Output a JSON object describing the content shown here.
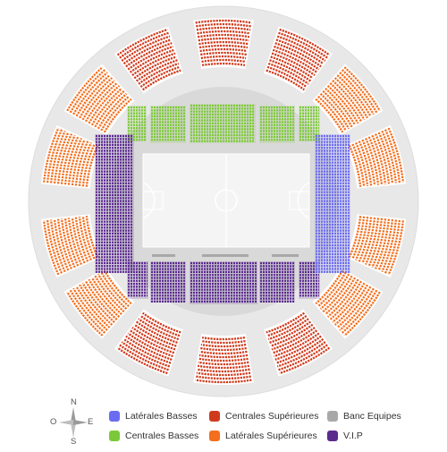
{
  "colors": {
    "laterales_basses": "#6b6bf2",
    "centrales_basses": "#7dc83a",
    "centrales_superieures": "#d03a1c",
    "laterales_superieures": "#f36f1e",
    "banc_equipes": "#a8a8a8",
    "vip": "#5b2a8e",
    "ring": "#e8e8e8",
    "inner": "#d9d9d9",
    "court": "#f4f4f4"
  },
  "compass": {
    "n": "N",
    "s": "S",
    "e": "E",
    "o": "O"
  },
  "legend": [
    {
      "key": "laterales_basses",
      "label": "Latérales Basses"
    },
    {
      "key": "centrales_superieures",
      "label": "Centrales Supérieures"
    },
    {
      "key": "banc_equipes",
      "label": "Banc Equipes"
    },
    {
      "key": "centrales_basses",
      "label": "Centrales Basses"
    },
    {
      "key": "laterales_superieures",
      "label": "Latérales Supérieures"
    },
    {
      "key": "vip",
      "label": "V.I.P"
    }
  ]
}
